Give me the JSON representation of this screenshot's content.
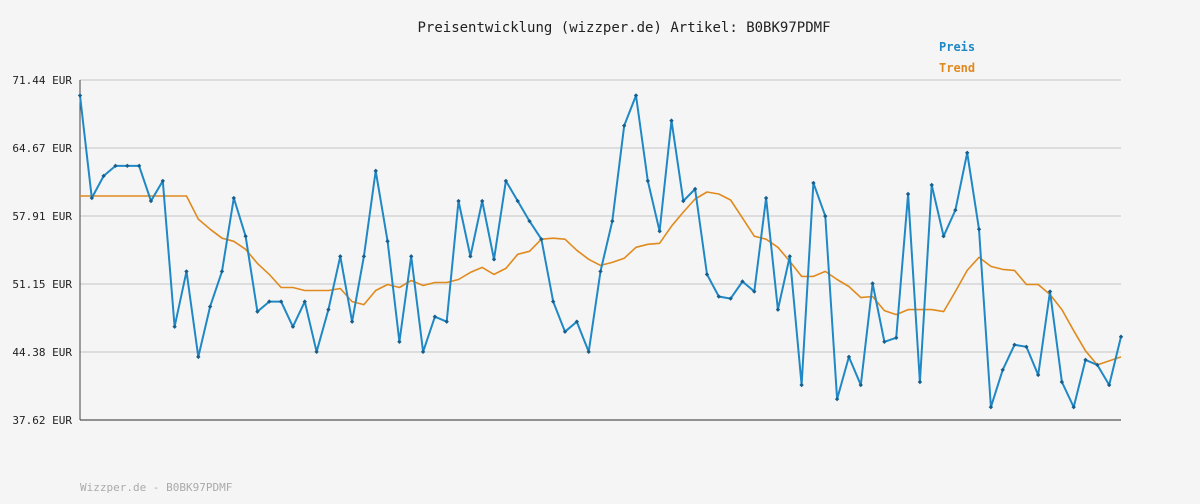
{
  "chart_data": {
    "type": "line",
    "title": "Preisentwicklung (wizzper.de) Artikel: B0BK97PDMF",
    "footer": "Wizzper.de - B0BK97PDMF",
    "ylim": [
      37.62,
      71.44
    ],
    "y_ticks": [
      "71.44 EUR",
      "64.67 EUR",
      "57.91 EUR",
      "51.15 EUR",
      "44.38 EUR",
      "37.62 EUR"
    ],
    "grid": true,
    "legend_position": "top-right",
    "series": [
      {
        "name": "Preis",
        "color": "#1f88c5",
        "values": [
          69.9,
          59.7,
          61.9,
          62.9,
          62.9,
          62.9,
          59.4,
          61.4,
          46.9,
          52.4,
          43.9,
          48.9,
          52.4,
          59.7,
          55.9,
          48.4,
          49.4,
          49.4,
          46.9,
          49.4,
          44.4,
          48.6,
          53.9,
          47.4,
          53.9,
          62.4,
          55.4,
          45.4,
          53.9,
          44.4,
          47.9,
          47.4,
          59.4,
          53.9,
          59.4,
          53.6,
          61.4,
          59.4,
          57.4,
          55.6,
          49.4,
          46.4,
          47.4,
          44.4,
          52.4,
          57.4,
          66.9,
          69.9,
          61.4,
          56.4,
          67.4,
          59.4,
          60.6,
          52.1,
          49.9,
          49.7,
          51.4,
          50.4,
          59.7,
          48.6,
          53.9,
          41.1,
          61.2,
          57.9,
          39.7,
          43.9,
          41.1,
          51.2,
          45.4,
          45.8,
          60.1,
          41.4,
          61.0,
          55.9,
          58.5,
          64.2,
          56.6,
          38.9,
          42.6,
          45.1,
          44.9,
          42.1,
          50.4,
          41.4,
          38.9,
          43.6,
          43.1,
          41.1,
          45.9
        ],
        "color_semantic": "blue"
      },
      {
        "name": "Trend",
        "color": "#e08a1e",
        "values": [
          59.9,
          59.9,
          59.9,
          59.9,
          59.9,
          59.9,
          59.9,
          59.9,
          59.9,
          59.9,
          57.6,
          56.6,
          55.7,
          55.4,
          54.6,
          53.2,
          52.1,
          50.8,
          50.8,
          50.5,
          50.5,
          50.5,
          50.7,
          49.4,
          49.1,
          50.5,
          51.1,
          50.8,
          51.5,
          51.0,
          51.3,
          51.3,
          51.6,
          52.3,
          52.8,
          52.1,
          52.7,
          54.1,
          54.4,
          55.6,
          55.7,
          55.6,
          54.5,
          53.6,
          53.0,
          53.3,
          53.7,
          54.8,
          55.1,
          55.2,
          56.9,
          58.3,
          59.6,
          60.3,
          60.1,
          59.5,
          57.7,
          55.9,
          55.6,
          54.8,
          53.4,
          51.9,
          51.9,
          52.4,
          51.6,
          50.9,
          49.8,
          49.9,
          48.5,
          48.1,
          48.6,
          48.6,
          48.6,
          48.4,
          50.4,
          52.5,
          53.8,
          52.9,
          52.6,
          52.5,
          51.1,
          51.1,
          50.1,
          48.6,
          46.5,
          44.5,
          43.1,
          43.5,
          43.9
        ]
      }
    ]
  }
}
